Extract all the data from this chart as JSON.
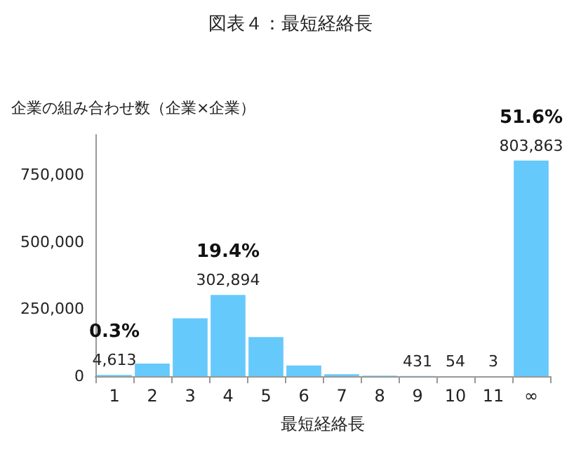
{
  "chart_data": {
    "type": "bar",
    "title": "図表４：最短経絡長",
    "xlabel": "最短経絡長",
    "ylabel": "企業の組み合わせ数（企業×企業）",
    "categories": [
      "1",
      "2",
      "3",
      "4",
      "5",
      "6",
      "7",
      "8",
      "9",
      "10",
      "11",
      "∞"
    ],
    "values": [
      4613,
      47000,
      216000,
      302894,
      146000,
      40000,
      7000,
      2000,
      431,
      54,
      3,
      803863
    ],
    "value_labels": [
      "4,613",
      null,
      null,
      "302,894",
      null,
      null,
      null,
      null,
      "431",
      "54",
      "3",
      "803,863"
    ],
    "color": "#66c9fb",
    "annotations": [
      {
        "text": "0.3%",
        "x": "1",
        "y": 4613
      },
      {
        "text": "19.4%",
        "x": "4",
        "y": 302894
      },
      {
        "text": "51.6%",
        "x": "∞",
        "y": 803863
      }
    ],
    "ylim": [
      0,
      900000
    ],
    "yticks": [
      0,
      {
        "value": 250000,
        "label": "250,000"
      },
      {
        "value": 500000,
        "label": "500,000"
      },
      {
        "value": 750000,
        "label": "750,000"
      }
    ],
    "grid": false
  }
}
